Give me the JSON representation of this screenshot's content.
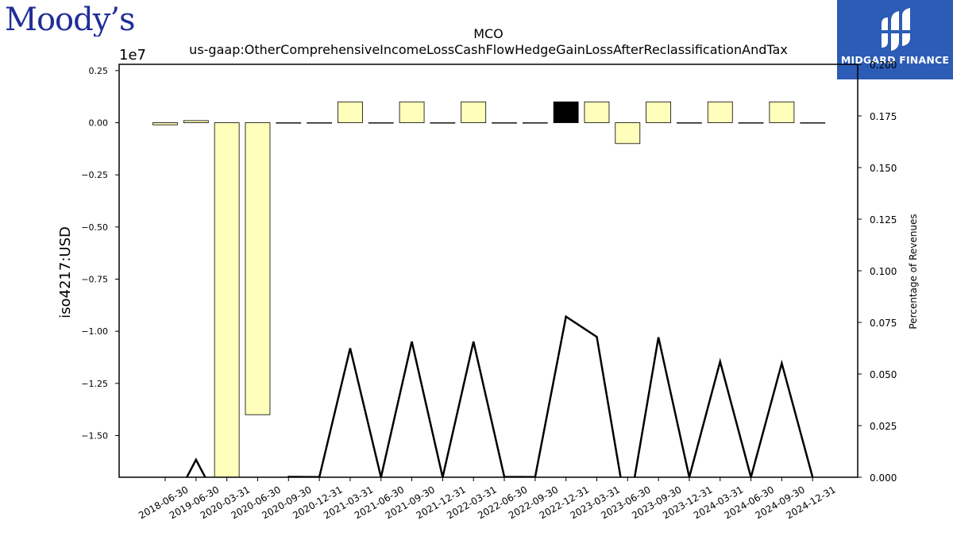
{
  "logos": {
    "moodys": "Moody’s",
    "midgard": "MIDGARD FINANCE"
  },
  "chart_data": {
    "type": "bar",
    "title": "MCO",
    "subtitle": "us-gaap:OtherComprehensiveIncomeLossCashFlowHedgeGainLossAfterReclassificationAndTax",
    "ylabel": "iso4217:USD",
    "y2label": "Percentage of Revenues",
    "offset_label": "1e7",
    "ylim": [
      -17000000,
      2800000
    ],
    "y2lim": [
      0.0,
      0.2
    ],
    "yticks": [
      0.25,
      0.0,
      -0.25,
      -0.5,
      -0.75,
      -1.0,
      -1.25,
      -1.5
    ],
    "yticks_labels": [
      "0.25",
      "0.00",
      "−0.25",
      "−0.50",
      "−0.75",
      "−1.00",
      "−1.25",
      "−1.50"
    ],
    "y2ticks": [
      0.2,
      0.175,
      0.15,
      0.125,
      0.1,
      0.075,
      0.05,
      0.025,
      0.0
    ],
    "y2ticks_labels": [
      "0.200",
      "0.175",
      "0.150",
      "0.125",
      "0.100",
      "0.075",
      "0.050",
      "0.025",
      "0.000"
    ],
    "categories": [
      "2018-06-30",
      "2019-06-30",
      "2020-03-31",
      "2020-06-30",
      "2020-09-30",
      "2020-12-31",
      "2021-03-31",
      "2021-06-30",
      "2021-09-30",
      "2021-12-31",
      "2022-03-31",
      "2022-06-30",
      "2022-09-30",
      "2022-12-31",
      "2023-03-31",
      "2023-06-30",
      "2023-09-30",
      "2023-12-31",
      "2024-03-31",
      "2024-06-30",
      "2024-09-30",
      "2024-12-31"
    ],
    "series": [
      {
        "kind": "bar",
        "values": [
          -100000,
          100000,
          -17000000,
          -14000000,
          0,
          0,
          1000000,
          0,
          1000000,
          0,
          1000000,
          0,
          0,
          1000000,
          1000000,
          -1000000,
          1000000,
          0,
          1000000,
          0,
          1000000,
          0
        ],
        "colors": [
          "#ffffbb",
          "#ffffbb",
          "#ffffbb",
          "#ffffbb",
          "#ffffbb",
          "#ffffbb",
          "#ffffbb",
          "#ffffbb",
          "#ffffbb",
          "#ffffbb",
          "#ffffbb",
          "#ffffbb",
          "#ffffbb",
          "#000000",
          "#ffffbb",
          "#ffffbb",
          "#ffffbb",
          "#ffffbb",
          "#ffffbb",
          "#ffffbb",
          "#ffffbb",
          "#ffffbb"
        ]
      },
      {
        "kind": "line",
        "axis": "right",
        "values": [
          -0.02,
          0.0085,
          -0.02,
          -0.02,
          0.0002,
          0.0001,
          0.0625,
          0.0,
          0.0657,
          0.0,
          0.0657,
          0.0002,
          0.0001,
          0.0778,
          0.068,
          -0.02,
          0.0678,
          0.0,
          0.056,
          0.0,
          0.0552,
          0.0
        ]
      }
    ],
    "bar_edge_color": "#000000",
    "line_color": "#000000",
    "grid": false
  }
}
